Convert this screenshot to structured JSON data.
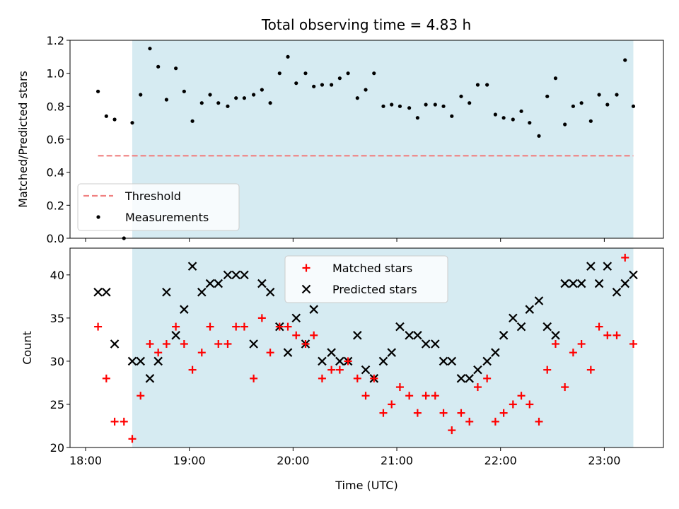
{
  "figure": {
    "title": "Total observing time = 4.83 h"
  },
  "colors": {
    "shade": "#add8e6",
    "threshold": "#f08080",
    "measurement": "#000000",
    "matched": "#ff0000",
    "predicted": "#000000"
  },
  "chart_data": [
    {
      "type": "scatter",
      "ylabel": "Matched/Predicted stars",
      "ylim": [
        0.0,
        1.2
      ],
      "yticks": [
        "0.0",
        "0.2",
        "0.4",
        "0.6",
        "0.8",
        "1.0",
        "1.2"
      ],
      "xlim": [
        17.85,
        23.57
      ],
      "shaded_x_range": [
        18.45,
        23.28
      ],
      "threshold": {
        "name": "Threshold",
        "value": 0.5,
        "x_range": [
          18.12,
          23.28
        ]
      },
      "legend_position": "lower-left",
      "series": [
        {
          "name": "Measurements",
          "x": [
            18.12,
            18.2,
            18.28,
            18.37,
            18.45,
            18.53,
            18.62,
            18.7,
            18.78,
            18.87,
            18.95,
            19.03,
            19.12,
            19.2,
            19.28,
            19.37,
            19.45,
            19.53,
            19.62,
            19.7,
            19.78,
            19.87,
            19.95,
            20.03,
            20.12,
            20.2,
            20.28,
            20.37,
            20.45,
            20.53,
            20.62,
            20.7,
            20.78,
            20.87,
            20.95,
            21.03,
            21.12,
            21.2,
            21.28,
            21.37,
            21.45,
            21.53,
            21.62,
            21.7,
            21.78,
            21.87,
            21.95,
            22.03,
            22.12,
            22.2,
            22.28,
            22.37,
            22.45,
            22.53,
            22.62,
            22.7,
            22.78,
            22.87,
            22.95,
            23.03,
            23.12,
            23.2,
            23.28
          ],
          "y": [
            0.89,
            0.74,
            0.72,
            0.0,
            0.7,
            0.87,
            1.15,
            1.04,
            0.84,
            1.03,
            0.89,
            0.71,
            0.82,
            0.87,
            0.82,
            0.8,
            0.85,
            0.85,
            0.87,
            0.9,
            0.82,
            1.0,
            1.1,
            0.94,
            1.0,
            0.92,
            0.93,
            0.93,
            0.97,
            1.0,
            0.85,
            0.9,
            1.0,
            0.8,
            0.81,
            0.8,
            0.79,
            0.73,
            0.81,
            0.81,
            0.8,
            0.74,
            0.86,
            0.82,
            0.93,
            0.93,
            0.75,
            0.73,
            0.72,
            0.77,
            0.7,
            0.62,
            0.86,
            0.97,
            0.69,
            0.8,
            0.82,
            0.71,
            0.87,
            0.81,
            0.87,
            1.08,
            0.8
          ]
        }
      ]
    },
    {
      "type": "scatter",
      "xlabel": "Time (UTC)",
      "ylabel": "Count",
      "ylim": [
        20,
        43.1
      ],
      "yticks": [
        "20",
        "25",
        "30",
        "35",
        "40"
      ],
      "xlim": [
        17.85,
        23.57
      ],
      "xticks": [
        "18:00",
        "19:00",
        "20:00",
        "21:00",
        "22:00",
        "23:00"
      ],
      "shaded_x_range": [
        18.45,
        23.28
      ],
      "legend_position": "upper-center",
      "series": [
        {
          "name": "Matched stars",
          "x": [
            18.12,
            18.2,
            18.28,
            18.37,
            18.45,
            18.53,
            18.62,
            18.7,
            18.78,
            18.87,
            18.95,
            19.03,
            19.12,
            19.2,
            19.28,
            19.37,
            19.45,
            19.53,
            19.62,
            19.7,
            19.78,
            19.87,
            19.95,
            20.03,
            20.12,
            20.2,
            20.28,
            20.37,
            20.45,
            20.53,
            20.62,
            20.7,
            20.78,
            20.87,
            20.95,
            21.03,
            21.12,
            21.2,
            21.28,
            21.37,
            21.45,
            21.53,
            21.62,
            21.7,
            21.78,
            21.87,
            21.95,
            22.03,
            22.12,
            22.2,
            22.28,
            22.37,
            22.45,
            22.53,
            22.62,
            22.7,
            22.78,
            22.87,
            22.95,
            23.03,
            23.12,
            23.2,
            23.28
          ],
          "y": [
            34,
            28,
            23,
            23,
            21,
            26,
            32,
            31,
            32,
            34,
            32,
            29,
            31,
            34,
            32,
            32,
            34,
            34,
            28,
            35,
            31,
            34,
            34,
            33,
            32,
            33,
            28,
            29,
            29,
            30,
            28,
            26,
            28,
            24,
            25,
            27,
            26,
            24,
            26,
            26,
            24,
            22,
            24,
            23,
            27,
            28,
            23,
            24,
            25,
            26,
            25,
            23,
            29,
            32,
            27,
            31,
            32,
            29,
            34,
            33,
            33,
            42,
            32
          ]
        },
        {
          "name": "Predicted stars",
          "x": [
            18.12,
            18.2,
            18.28,
            18.45,
            18.53,
            18.62,
            18.7,
            18.78,
            18.87,
            18.95,
            19.03,
            19.12,
            19.2,
            19.28,
            19.37,
            19.45,
            19.53,
            19.62,
            19.7,
            19.78,
            19.87,
            19.95,
            20.03,
            20.12,
            20.2,
            20.28,
            20.37,
            20.45,
            20.53,
            20.62,
            20.7,
            20.78,
            20.87,
            20.95,
            21.03,
            21.12,
            21.2,
            21.28,
            21.37,
            21.45,
            21.53,
            21.62,
            21.7,
            21.78,
            21.87,
            21.95,
            22.03,
            22.12,
            22.2,
            22.28,
            22.37,
            22.45,
            22.53,
            22.62,
            22.7,
            22.78,
            22.87,
            22.95,
            23.03,
            23.12,
            23.2,
            23.28
          ],
          "y": [
            38,
            38,
            32,
            30,
            30,
            28,
            30,
            38,
            33,
            36,
            41,
            38,
            39,
            39,
            40,
            40,
            40,
            32,
            39,
            38,
            34,
            31,
            35,
            32,
            36,
            30,
            31,
            30,
            30,
            33,
            29,
            28,
            30,
            31,
            34,
            33,
            33,
            32,
            32,
            30,
            30,
            28,
            28,
            29,
            30,
            31,
            33,
            35,
            34,
            36,
            37,
            34,
            33,
            39,
            39,
            39,
            41,
            39,
            41,
            38,
            39,
            40
          ]
        }
      ]
    }
  ]
}
